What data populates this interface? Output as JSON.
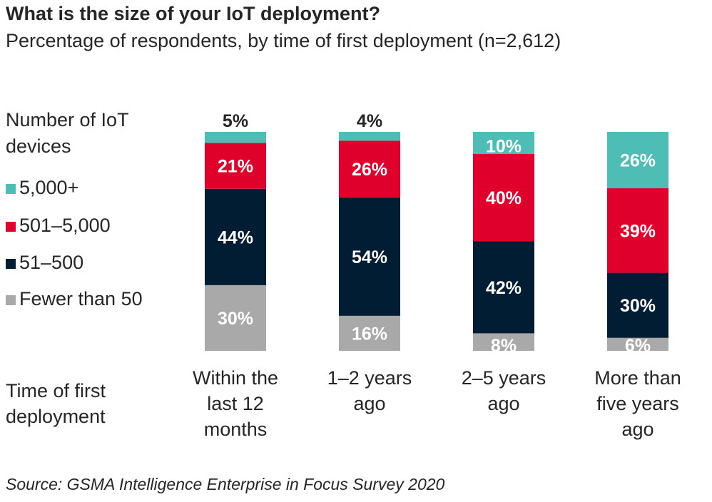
{
  "header": {
    "title": "What is the size of your IoT deployment?",
    "subtitle": "Percentage of respondents, by time of first deployment (n=2,612)"
  },
  "legend": {
    "title": "Number of IoT devices",
    "items": [
      {
        "label": "5,000+",
        "color": "#4dbdb5"
      },
      {
        "label": "501–5,000",
        "color": "#df002c"
      },
      {
        "label": "51–500",
        "color": "#001d33"
      },
      {
        "label": "Fewer than 50",
        "color": "#a9a9a9"
      }
    ]
  },
  "xaxis": {
    "title": "Time of first deployment"
  },
  "source": "Source: GSMA Intelligence Enterprise in Focus Survey 2020",
  "chart_data": {
    "type": "bar",
    "stacked": true,
    "title": "What is the size of your IoT deployment?",
    "subtitle": "Percentage of respondents, by time of first deployment (n=2,612)",
    "xlabel": "Time of first deployment",
    "ylabel": "",
    "ylim": [
      0,
      100
    ],
    "grid": false,
    "legend_position": "left",
    "legend_title": "Number of IoT devices",
    "categories": [
      "Within the last 12 months",
      "1–2 years ago",
      "2–5 years ago",
      "More than five years ago"
    ],
    "category_lines": [
      [
        "Within the",
        "last 12",
        "months"
      ],
      [
        "1–2 years",
        "ago"
      ],
      [
        "2–5 years",
        "ago"
      ],
      [
        "More than",
        "five years",
        "ago"
      ]
    ],
    "series": [
      {
        "name": "Fewer than 50",
        "color": "#a9a9a9",
        "values": [
          30,
          16,
          8,
          6
        ],
        "labels": [
          "30%",
          "16%",
          "8%",
          "6%"
        ]
      },
      {
        "name": "51–500",
        "color": "#001d33",
        "values": [
          44,
          54,
          42,
          30
        ],
        "labels": [
          "44%",
          "54%",
          "42%",
          "30%"
        ]
      },
      {
        "name": "501–5,000",
        "color": "#df002c",
        "values": [
          21,
          26,
          40,
          39
        ],
        "labels": [
          "21%",
          "26%",
          "40%",
          "39%"
        ]
      },
      {
        "name": "5,000+",
        "color": "#4dbdb5",
        "values": [
          5,
          4,
          10,
          26
        ],
        "labels": [
          "5%",
          "4%",
          "10%",
          "26%"
        ]
      }
    ]
  }
}
